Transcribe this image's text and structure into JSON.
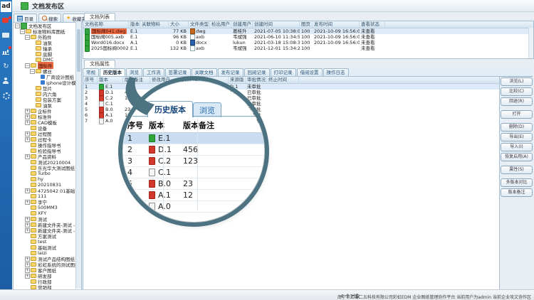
{
  "app": {
    "logo": "ad",
    "title": "文档发布区",
    "status_left": "4 个对象",
    "status_right": "南宁市二零二五科技有限公司彩虹EDM 企业图纸管理协作平台  当前用户为admin  当前企业攻文协作区"
  },
  "colors": {
    "rail_blue": "#1f66ae",
    "accent_blue": "#2a6db5",
    "highlight_orange": "#e8683f",
    "selected_row_blue": "#c8ddf2",
    "magnifier_ring": "#4d7383",
    "version_green": "#2fa63b",
    "version_red": "#d4372c"
  },
  "rail_icons": [
    "chat-icon",
    "folder-icon",
    "chart-icon",
    "sync-icon",
    "user-icon",
    "gear-icon"
  ],
  "sidebar": {
    "tabs": [
      "目录",
      "搜索",
      "收藏夹"
    ],
    "tree": [
      {
        "l": "文档发布区",
        "d": 0,
        "ic": "root",
        "ex": "minus"
      },
      {
        "l": "标准物料库图纸",
        "d": 1,
        "ic": "folder",
        "ex": "minus"
      },
      {
        "l": "外购件",
        "d": 2,
        "ic": "folder",
        "ex": "minus"
      },
      {
        "l": "油泵",
        "d": 3,
        "ic": "folder"
      },
      {
        "l": "轴承",
        "d": 3,
        "ic": "folder"
      },
      {
        "l": "底脚",
        "d": 3,
        "ic": "folder"
      },
      {
        "l": "DMC",
        "d": 3,
        "ic": "folder"
      },
      {
        "l": "国标件",
        "d": 2,
        "ic": "folder",
        "ex": "minus",
        "sel": true
      },
      {
        "l": "螺丝",
        "d": 3,
        "ic": "folder",
        "ex": "minus"
      },
      {
        "l": "厂商设计图纸",
        "d": 4,
        "ic": "doc"
      },
      {
        "l": "iphone设计模板",
        "d": 4,
        "ic": "doc"
      },
      {
        "l": "垫片",
        "d": 3,
        "ic": "folder"
      },
      {
        "l": "内六角",
        "d": 3,
        "ic": "folder"
      },
      {
        "l": "包装方案",
        "d": 3,
        "ic": "folder"
      },
      {
        "l": "油泵",
        "d": 3,
        "ic": "folder"
      },
      {
        "l": "企标件",
        "d": 2,
        "ic": "folder",
        "ex": "plus"
      },
      {
        "l": "标准件",
        "d": 2,
        "ic": "folder",
        "ex": "plus"
      },
      {
        "l": "CAD模板",
        "d": 2,
        "ic": "folder",
        "ex": "plus"
      },
      {
        "l": "设备",
        "d": 2,
        "ic": "folder"
      },
      {
        "l": "过程图",
        "d": 2,
        "ic": "folder",
        "ex": "plus"
      },
      {
        "l": "过程卡",
        "d": 2,
        "ic": "folder",
        "ex": "plus"
      },
      {
        "l": "操作指导书",
        "d": 2,
        "ic": "folder"
      },
      {
        "l": "检验指导书",
        "d": 2,
        "ic": "folder"
      },
      {
        "l": "产品资料",
        "d": 2,
        "ic": "folder",
        "ex": "plus"
      },
      {
        "l": "测试20210004",
        "d": 2,
        "ic": "folder"
      },
      {
        "l": "乐光华大测试图纸",
        "d": 2,
        "ic": "folder"
      },
      {
        "l": "Turbo",
        "d": 2,
        "ic": "folder"
      },
      {
        "l": "hy",
        "d": 2,
        "ic": "folder"
      },
      {
        "l": "20210831",
        "d": 2,
        "ic": "folder"
      },
      {
        "l": "4725042 01基础",
        "d": 2,
        "ic": "folder",
        "ex": "plus"
      },
      {
        "l": "111",
        "d": 2,
        "ic": "folder"
      },
      {
        "l": "李宁",
        "d": 2,
        "ic": "folder",
        "ex": "plus"
      },
      {
        "l": "500MM3",
        "d": 2,
        "ic": "folder"
      },
      {
        "l": "XFY",
        "d": 2,
        "ic": "folder"
      },
      {
        "l": "测试",
        "d": 2,
        "ic": "folder",
        "ex": "plus"
      },
      {
        "l": "新建文件夹-测试 - 副本",
        "d": 2,
        "ic": "folder",
        "ex": "plus"
      },
      {
        "l": "新建文件夹-测试 - 副本2",
        "d": 2,
        "ic": "folder",
        "ex": "plus"
      },
      {
        "l": "方案测试",
        "d": 2,
        "ic": "folder"
      },
      {
        "l": "test",
        "d": 2,
        "ic": "folder"
      },
      {
        "l": "基础测试",
        "d": 2,
        "ic": "folder"
      },
      {
        "l": "laizi",
        "d": 2,
        "ic": "folder"
      },
      {
        "l": "测试产品结构图纸",
        "d": 2,
        "ic": "folder",
        "ex": "plus"
      },
      {
        "l": "彩虹系统的测试图纸",
        "d": 2,
        "ic": "folder",
        "ex": "plus"
      },
      {
        "l": "客户图纸",
        "d": 2,
        "ic": "folder",
        "ex": "plus"
      },
      {
        "l": "研发部",
        "d": 2,
        "ic": "folder",
        "ex": "plus"
      },
      {
        "l": "行政部",
        "d": 2,
        "ic": "folder"
      },
      {
        "l": "营销部",
        "d": 2,
        "ic": "folder"
      }
    ]
  },
  "filelist": {
    "tab": "文档列表",
    "columns": [
      "文档名称",
      "版本",
      "关联物料",
      "大小",
      "文件类型",
      "检出用户",
      "创建用户",
      "创建时间",
      "图页",
      "发布时间",
      "查看状态"
    ],
    "rows": [
      {
        "name": "国标阀041.dwg",
        "ver": "E.1",
        "material": "",
        "size": "77 KB",
        "type": "dwg",
        "checkout": "",
        "creator": "葛桂升",
        "created": "2021-07-05 10:38:06",
        "pages": "100",
        "published": "2021-10-09 16:56:08",
        "status": "未查看",
        "hl": true,
        "sel": true
      },
      {
        "name": "国标阀005.axb",
        "ver": "E.1",
        "material": "",
        "size": "96 KB",
        "type": "axb",
        "checkout": "",
        "creator": "韦斌强",
        "created": "2021-06-10 11:34:50",
        "pages": "100",
        "published": "2021-10-09 16:56:08",
        "status": "未查看"
      },
      {
        "name": "Word016.docx",
        "ver": "A.1",
        "material": "",
        "size": "0 KB",
        "type": "docx",
        "checkout": "",
        "creator": "lukun",
        "created": "2021-03-18 15:08:37",
        "pages": "100",
        "published": "2021-10-09 16:56:08",
        "status": "未查看"
      },
      {
        "name": "2025国标阀0002.axb",
        "ver": "E.1",
        "material": "",
        "size": "132 KB",
        "type": "axb",
        "checkout": "",
        "creator": "韦斌强",
        "created": "2021-12-01 15:34:25",
        "pages": "100",
        "published": "",
        "status": "未查看"
      }
    ]
  },
  "props": {
    "tab": "文档属性",
    "tabs": [
      "常规",
      "历史版本",
      "浏览",
      "工作流",
      "签署记录",
      "关联文档",
      "发布记录",
      "回阅记录",
      "打印记录",
      "借阅设置",
      "操作日志"
    ],
    "active_tab": "历史版本",
    "columns": [
      "序号",
      "版本",
      "版本备注",
      "修改用户",
      "修改时间",
      "来源版本",
      "审批情况",
      "终止时间"
    ],
    "rows": [
      {
        "no": "1",
        "icon": "green",
        "ver": "E.1",
        "note": "",
        "user": "",
        "time": "",
        "source": "D.1",
        "approve": "未审批",
        "end": "",
        "sel": true
      },
      {
        "no": "2",
        "icon": "red",
        "ver": "D.1",
        "note": "456",
        "user": "",
        "time": "",
        "source": "C.2",
        "approve": "已审批",
        "end": ""
      },
      {
        "no": "3",
        "icon": "red",
        "ver": "C.2",
        "note": "123",
        "user": "",
        "time": "",
        "source": "C.1",
        "approve": "已审批",
        "end": ""
      },
      {
        "no": "4",
        "icon": "gray",
        "ver": "C.1",
        "note": "",
        "user": "",
        "time": "",
        "source": "B.0",
        "approve": "未审批",
        "end": ""
      },
      {
        "no": "5",
        "icon": "red",
        "ver": "B.0",
        "note": "23",
        "user": "",
        "time": "",
        "source": "A.1",
        "approve": "已审批",
        "end": ""
      },
      {
        "no": "6",
        "icon": "red",
        "ver": "A.1",
        "note": "12",
        "user": "",
        "time": "",
        "source": "A.0",
        "approve": "已审批",
        "end": ""
      },
      {
        "no": "7",
        "icon": "gray",
        "ver": "A.0",
        "note": "",
        "user": "",
        "time": "",
        "source": "",
        "approve": "未审批",
        "end": ""
      }
    ],
    "buttons": [
      "浏览(L)",
      "比较(C)",
      "回退(R)",
      "打开",
      "删除(D)",
      "导出(E)",
      "导入(I)",
      "恢复启用(A)",
      "属性(S)",
      "多版本对比",
      "版本备注"
    ]
  },
  "magnifier": {
    "tabs": [
      "历史版本",
      "浏览"
    ],
    "columns": [
      "序号",
      "版本",
      "版本备注"
    ]
  }
}
